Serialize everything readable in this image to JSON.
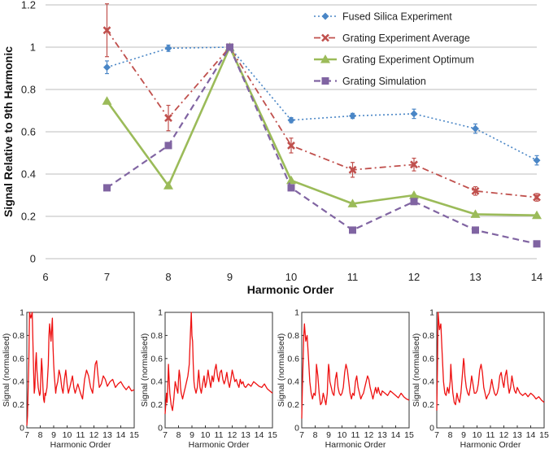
{
  "chart_data": [
    {
      "type": "line",
      "title": "",
      "xlabel": "Harmonic Order",
      "ylabel": "Signal Relative to 9th Harmonic",
      "xlim": [
        6,
        14
      ],
      "ylim": [
        0,
        1.2
      ],
      "xticks": [
        "6",
        "7",
        "8",
        "9",
        "10",
        "11",
        "12",
        "13",
        "14"
      ],
      "yticks": [
        "0",
        "0.2",
        "0.4",
        "0.6",
        "0.8",
        "1",
        "1.2"
      ],
      "grid": "horizontal",
      "legend_position": "top-right",
      "series": [
        {
          "name": "Fused Silica Experiment",
          "color": "#4a86c6",
          "marker": "diamond",
          "line_style": "dotted",
          "x": [
            7,
            8,
            9,
            10,
            11,
            12,
            13,
            14
          ],
          "y": [
            0.905,
            0.995,
            1.0,
            0.655,
            0.675,
            0.685,
            0.615,
            0.465
          ],
          "error": [
            0.03,
            0.015,
            0.0,
            0.012,
            0.012,
            0.022,
            0.022,
            0.022
          ]
        },
        {
          "name": "Grating Experiment Average",
          "color": "#c0504d",
          "marker": "x",
          "line_style": "dashdot",
          "x": [
            7,
            8,
            9,
            10,
            11,
            12,
            13,
            14
          ],
          "y": [
            1.08,
            0.665,
            1.0,
            0.535,
            0.42,
            0.445,
            0.32,
            0.29
          ],
          "error": [
            0.125,
            0.06,
            0.0,
            0.035,
            0.035,
            0.03,
            0.02,
            0.018
          ]
        },
        {
          "name": "Grating Experiment Optimum",
          "color": "#9bbb59",
          "marker": "triangle",
          "line_style": "solid",
          "x": [
            7,
            8,
            9,
            10,
            11,
            12,
            13,
            14
          ],
          "y": [
            0.745,
            0.345,
            1.0,
            0.37,
            0.26,
            0.3,
            0.21,
            0.205
          ]
        },
        {
          "name": "Grating Simulation",
          "color": "#8064a2",
          "marker": "square",
          "line_style": "dashed",
          "x": [
            7,
            8,
            9,
            10,
            11,
            12,
            13,
            14
          ],
          "y": [
            0.335,
            0.535,
            1.0,
            0.335,
            0.135,
            0.27,
            0.135,
            0.07
          ]
        }
      ]
    },
    {
      "type": "line",
      "xlabel": "Harmonic Order",
      "ylabel": "Signal (normalised)",
      "xlim": [
        7,
        15
      ],
      "ylim": [
        0,
        1
      ],
      "xticks": [
        "7",
        "8",
        "9",
        "10",
        "11",
        "12",
        "13",
        "14",
        "15"
      ],
      "yticks": [
        "0",
        "0.2",
        "0.4",
        "0.6",
        "0.8",
        "1"
      ],
      "series": [
        {
          "color": "#ee1111",
          "x": [
            7.0,
            7.05,
            7.15,
            7.2,
            7.3,
            7.4,
            7.5,
            7.55,
            7.6,
            7.65,
            7.7,
            7.75,
            7.85,
            7.95,
            8.0,
            8.05,
            8.1,
            8.15,
            8.2,
            8.25,
            8.3,
            8.35,
            8.4,
            8.5,
            8.6,
            8.65,
            8.7,
            8.8,
            8.85,
            8.9,
            8.95,
            9.0,
            9.05,
            9.1,
            9.15,
            9.2,
            9.3,
            9.4,
            9.5,
            9.6,
            9.7,
            9.8,
            9.9,
            10.0,
            10.1,
            10.2,
            10.3,
            10.4,
            10.5,
            10.6,
            10.8,
            11.0,
            11.15,
            11.3,
            11.45,
            11.6,
            11.75,
            11.9,
            12.0,
            12.1,
            12.2,
            12.3,
            12.4,
            12.55,
            12.7,
            12.85,
            13.0,
            13.2,
            13.4,
            13.6,
            13.8,
            14.0,
            14.2,
            14.4,
            14.6,
            14.8,
            15.0
          ],
          "y": [
            0.02,
            0.1,
            0.6,
            1.0,
            0.95,
            1.0,
            0.5,
            0.3,
            0.35,
            0.55,
            0.65,
            0.5,
            0.35,
            0.28,
            0.3,
            0.45,
            0.6,
            0.5,
            0.35,
            0.25,
            0.22,
            0.3,
            0.28,
            0.35,
            0.55,
            0.8,
            0.9,
            0.75,
            0.85,
            0.95,
            0.7,
            0.55,
            0.45,
            0.38,
            0.3,
            0.35,
            0.4,
            0.5,
            0.45,
            0.35,
            0.3,
            0.42,
            0.5,
            0.38,
            0.3,
            0.35,
            0.4,
            0.45,
            0.35,
            0.3,
            0.38,
            0.3,
            0.25,
            0.42,
            0.5,
            0.45,
            0.35,
            0.3,
            0.42,
            0.55,
            0.58,
            0.45,
            0.35,
            0.38,
            0.45,
            0.42,
            0.36,
            0.4,
            0.42,
            0.35,
            0.38,
            0.4,
            0.36,
            0.33,
            0.36,
            0.32,
            0.33
          ]
        }
      ]
    },
    {
      "type": "line",
      "xlabel": "Harmonic Order",
      "ylabel": "Signal (normalised)",
      "xlim": [
        7,
        15
      ],
      "ylim": [
        0,
        1
      ],
      "xticks": [
        "7",
        "8",
        "9",
        "10",
        "11",
        "12",
        "13",
        "14",
        "15"
      ],
      "yticks": [
        "0",
        "0.2",
        "0.4",
        "0.6",
        "0.8",
        "1"
      ],
      "series": [
        {
          "color": "#ee1111",
          "x": [
            7.0,
            7.05,
            7.1,
            7.15,
            7.2,
            7.25,
            7.35,
            7.45,
            7.55,
            7.65,
            7.75,
            7.85,
            7.95,
            8.0,
            8.05,
            8.1,
            8.15,
            8.2,
            8.3,
            8.4,
            8.5,
            8.6,
            8.7,
            8.8,
            8.85,
            8.9,
            8.95,
            9.0,
            9.05,
            9.1,
            9.15,
            9.2,
            9.3,
            9.4,
            9.5,
            9.6,
            9.7,
            9.8,
            9.9,
            10.0,
            10.1,
            10.2,
            10.3,
            10.4,
            10.5,
            10.6,
            10.7,
            10.8,
            10.9,
            11.0,
            11.1,
            11.2,
            11.3,
            11.4,
            11.5,
            11.6,
            11.7,
            11.8,
            11.9,
            12.0,
            12.1,
            12.2,
            12.3,
            12.4,
            12.5,
            12.6,
            12.7,
            12.8,
            12.9,
            13.0,
            13.2,
            13.4,
            13.6,
            13.8,
            14.0,
            14.2,
            14.4,
            14.6,
            14.8,
            15.0
          ],
          "y": [
            0.12,
            0.2,
            0.3,
            0.22,
            0.35,
            0.55,
            0.3,
            0.2,
            0.15,
            0.25,
            0.4,
            0.35,
            0.3,
            0.42,
            0.5,
            0.45,
            0.35,
            0.3,
            0.25,
            0.3,
            0.35,
            0.4,
            0.45,
            0.55,
            0.7,
            0.85,
            1.0,
            0.8,
            0.75,
            0.55,
            0.4,
            0.35,
            0.3,
            0.35,
            0.5,
            0.35,
            0.3,
            0.38,
            0.45,
            0.35,
            0.4,
            0.5,
            0.42,
            0.35,
            0.45,
            0.4,
            0.5,
            0.55,
            0.45,
            0.4,
            0.48,
            0.5,
            0.42,
            0.38,
            0.42,
            0.48,
            0.4,
            0.35,
            0.42,
            0.5,
            0.45,
            0.4,
            0.42,
            0.38,
            0.35,
            0.42,
            0.38,
            0.4,
            0.36,
            0.35,
            0.38,
            0.36,
            0.4,
            0.38,
            0.36,
            0.35,
            0.38,
            0.34,
            0.32,
            0.3
          ]
        }
      ]
    },
    {
      "type": "line",
      "xlabel": "Harmonic Order",
      "ylabel": "Signal (normalised)",
      "xlim": [
        7,
        15
      ],
      "ylim": [
        0,
        1
      ],
      "xticks": [
        "7",
        "8",
        "9",
        "10",
        "11",
        "12",
        "13",
        "14",
        "15"
      ],
      "yticks": [
        "0",
        "0.2",
        "0.4",
        "0.6",
        "0.8",
        "1"
      ],
      "series": [
        {
          "color": "#ee1111",
          "x": [
            7.0,
            7.05,
            7.15,
            7.2,
            7.3,
            7.4,
            7.5,
            7.6,
            7.7,
            7.8,
            7.9,
            8.0,
            8.05,
            8.1,
            8.2,
            8.3,
            8.4,
            8.5,
            8.6,
            8.7,
            8.8,
            8.9,
            8.95,
            9.0,
            9.05,
            9.1,
            9.2,
            9.3,
            9.4,
            9.5,
            9.6,
            9.7,
            9.8,
            9.9,
            10.0,
            10.1,
            10.2,
            10.3,
            10.4,
            10.5,
            10.6,
            10.7,
            10.8,
            10.9,
            11.0,
            11.1,
            11.2,
            11.3,
            11.4,
            11.5,
            11.6,
            11.7,
            11.8,
            11.9,
            12.0,
            12.1,
            12.2,
            12.3,
            12.4,
            12.5,
            12.6,
            12.7,
            12.8,
            12.9,
            13.0,
            13.2,
            13.4,
            13.6,
            13.8,
            14.0,
            14.2,
            14.4,
            14.6,
            14.8,
            15.0
          ],
          "y": [
            0.08,
            0.35,
            0.8,
            0.9,
            0.75,
            0.8,
            0.6,
            0.4,
            0.3,
            0.25,
            0.3,
            0.28,
            0.35,
            0.55,
            0.45,
            0.3,
            0.2,
            0.22,
            0.3,
            0.25,
            0.2,
            0.3,
            0.45,
            0.55,
            0.5,
            0.4,
            0.35,
            0.3,
            0.28,
            0.42,
            0.48,
            0.35,
            0.3,
            0.28,
            0.3,
            0.35,
            0.48,
            0.55,
            0.5,
            0.4,
            0.3,
            0.25,
            0.3,
            0.28,
            0.4,
            0.45,
            0.35,
            0.3,
            0.25,
            0.28,
            0.3,
            0.35,
            0.4,
            0.45,
            0.42,
            0.35,
            0.3,
            0.25,
            0.3,
            0.35,
            0.3,
            0.35,
            0.3,
            0.28,
            0.32,
            0.3,
            0.28,
            0.32,
            0.3,
            0.28,
            0.26,
            0.3,
            0.27,
            0.25,
            0.24
          ]
        }
      ]
    },
    {
      "type": "line",
      "xlabel": "Harmonic Order",
      "ylabel": "Signal (normalised)",
      "xlim": [
        7,
        15
      ],
      "ylim": [
        0,
        1
      ],
      "xticks": [
        "7",
        "8",
        "9",
        "10",
        "11",
        "12",
        "13",
        "14",
        "15"
      ],
      "yticks": [
        "0",
        "0.2",
        "0.4",
        "0.6",
        "0.8",
        "1"
      ],
      "series": [
        {
          "color": "#ee1111",
          "x": [
            7.0,
            7.05,
            7.1,
            7.15,
            7.2,
            7.3,
            7.4,
            7.5,
            7.6,
            7.7,
            7.8,
            7.9,
            8.0,
            8.05,
            8.1,
            8.2,
            8.3,
            8.4,
            8.5,
            8.6,
            8.7,
            8.8,
            8.9,
            9.0,
            9.05,
            9.1,
            9.2,
            9.3,
            9.4,
            9.5,
            9.6,
            9.7,
            9.8,
            9.9,
            10.0,
            10.1,
            10.2,
            10.3,
            10.4,
            10.5,
            10.6,
            10.7,
            10.8,
            10.9,
            11.0,
            11.1,
            11.2,
            11.3,
            11.4,
            11.5,
            11.6,
            11.7,
            11.8,
            11.9,
            12.0,
            12.1,
            12.2,
            12.3,
            12.4,
            12.5,
            12.6,
            12.7,
            12.8,
            12.9,
            13.0,
            13.2,
            13.4,
            13.6,
            13.8,
            14.0,
            14.2,
            14.4,
            14.6,
            14.8,
            15.0
          ],
          "y": [
            0.15,
            0.5,
            1.0,
            0.92,
            0.85,
            0.9,
            0.65,
            0.4,
            0.3,
            0.28,
            0.35,
            0.3,
            0.4,
            0.55,
            0.45,
            0.3,
            0.22,
            0.2,
            0.3,
            0.25,
            0.22,
            0.3,
            0.45,
            0.6,
            0.55,
            0.45,
            0.35,
            0.3,
            0.28,
            0.35,
            0.45,
            0.38,
            0.3,
            0.3,
            0.32,
            0.38,
            0.5,
            0.55,
            0.48,
            0.35,
            0.3,
            0.25,
            0.28,
            0.3,
            0.35,
            0.42,
            0.35,
            0.3,
            0.28,
            0.3,
            0.35,
            0.45,
            0.48,
            0.4,
            0.35,
            0.45,
            0.5,
            0.38,
            0.3,
            0.35,
            0.45,
            0.38,
            0.32,
            0.3,
            0.35,
            0.3,
            0.28,
            0.3,
            0.27,
            0.3,
            0.28,
            0.25,
            0.27,
            0.24,
            0.22
          ]
        }
      ]
    }
  ]
}
